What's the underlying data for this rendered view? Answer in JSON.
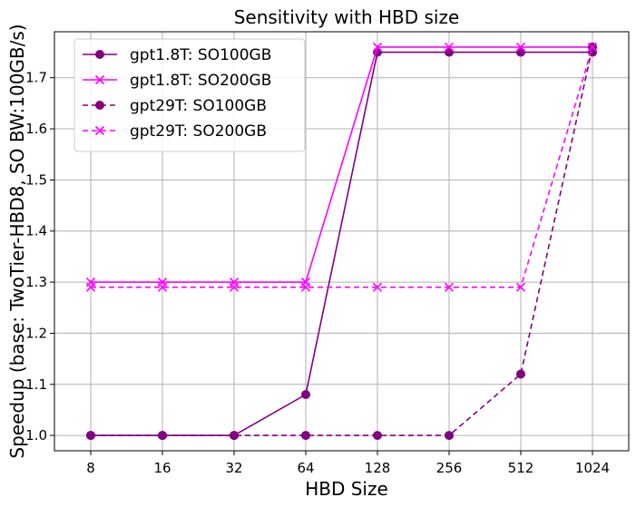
{
  "chart_data": {
    "type": "line",
    "title": "Sensitivity with HBD size",
    "xlabel": "HBD Size",
    "ylabel": "Speedup (base: TwoTier-HBD8, SO BW:100GB/s)",
    "x": [
      "8",
      "16",
      "32",
      "64",
      "128",
      "256",
      "512",
      "1024"
    ],
    "xticks": [
      "8",
      "16",
      "32",
      "64",
      "128",
      "256",
      "512",
      "1024"
    ],
    "yticks": [
      "1.0",
      "1.1",
      "1.2",
      "1.3",
      "1.4",
      "1.5",
      "1.6",
      "1.7"
    ],
    "ylim": [
      0.97,
      1.79
    ],
    "grid": true,
    "legend_position": "upper-left",
    "series": [
      {
        "name": "gpt1.8T: SO100GB",
        "values": [
          1.0,
          1.0,
          1.0,
          1.08,
          1.75,
          1.75,
          1.75,
          1.75
        ],
        "color": "#800080",
        "line_style": "solid",
        "marker": "circle"
      },
      {
        "name": "gpt1.8T: SO200GB",
        "values": [
          1.3,
          1.3,
          1.3,
          1.3,
          1.76,
          1.76,
          1.76,
          1.76
        ],
        "color": "#ff00ff",
        "line_style": "solid",
        "marker": "x"
      },
      {
        "name": "gpt29T: SO100GB",
        "values": [
          1.0,
          1.0,
          1.0,
          1.0,
          1.0,
          1.0,
          1.12,
          1.76
        ],
        "color": "#800080",
        "line_style": "dashed",
        "marker": "circle"
      },
      {
        "name": "gpt29T: SO200GB",
        "values": [
          1.29,
          1.29,
          1.29,
          1.29,
          1.29,
          1.29,
          1.29,
          1.76
        ],
        "color": "#ff00ff",
        "line_style": "dashed",
        "marker": "x"
      }
    ]
  }
}
